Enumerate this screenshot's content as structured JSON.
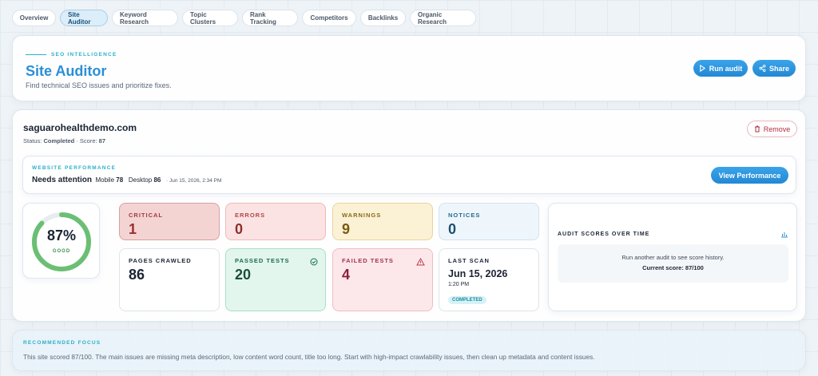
{
  "tabs": {
    "items": [
      "Overview",
      "Site Auditor",
      "Keyword Research",
      "Topic Clusters",
      "Rank Tracking",
      "Competitors",
      "Backlinks",
      "Organic Research"
    ],
    "active": 1
  },
  "header": {
    "eyebrow": "SEO INTELLIGENCE",
    "title": "Site Auditor",
    "subtitle": "Find technical SEO issues and prioritize fixes.",
    "buttons": [
      "Run audit",
      "Share"
    ]
  },
  "site": {
    "domain": "saguarohealthdemo.com",
    "status_label": "Status:",
    "status": "Completed",
    "score_label": "· Score:",
    "score": 87,
    "remove": "Remove"
  },
  "performance": {
    "eyebrow": "WEBSITE PERFORMANCE",
    "verdict": "Needs attention",
    "mobile_label": "Mobile",
    "mobile": 78,
    "desktop_label": "Desktop",
    "desktop": 86,
    "date": "· Jun 15, 2026, 2:34 PM",
    "button": "View Performance"
  },
  "gauge": {
    "value": 87,
    "label": "87%",
    "rating": "GOOD"
  },
  "stats": [
    {
      "label": "CRITICAL",
      "value": 1
    },
    {
      "label": "ERRORS",
      "value": 0
    },
    {
      "label": "WARNINGS",
      "value": 9
    },
    {
      "label": "NOTICES",
      "value": 0
    },
    {
      "label": "PAGES CRAWLED",
      "value": 86
    },
    {
      "label": "PASSED TESTS",
      "value": 20
    },
    {
      "label": "FAILED TESTS",
      "value": 4
    }
  ],
  "last_scan": {
    "label": "LAST SCAN",
    "date": "Jun 15, 2026",
    "time": "1:20 PM",
    "status": "COMPLETED"
  },
  "history": {
    "title": "AUDIT SCORES OVER TIME",
    "message": "Run another audit to see score history.",
    "current": "Current score: 87/100"
  },
  "focus": {
    "title": "RECOMMENDED FOCUS",
    "text": "This site scored 87/100. The main issues are missing meta description, low content word count, title too long. Start with high-impact crawlability issues, then clean up metadata and content issues."
  }
}
